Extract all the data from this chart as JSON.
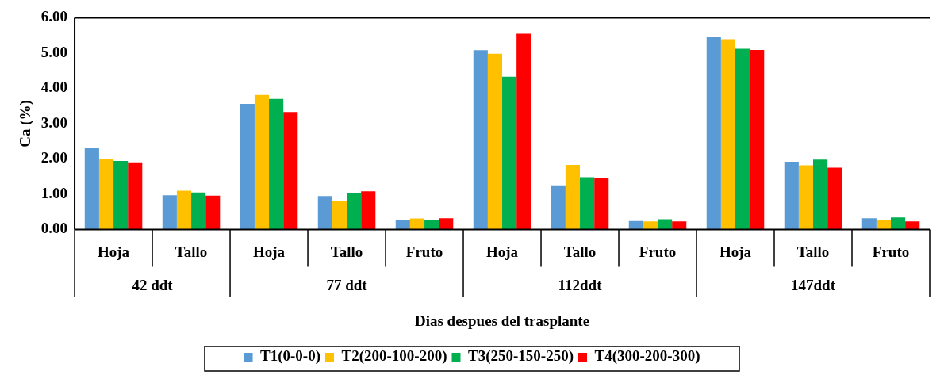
{
  "chart_data": {
    "type": "bar",
    "xlabel": "Dias despues del trasplante",
    "ylabel": "Ca (%)",
    "categories": [
      "Hoja",
      "Tallo",
      "Hoja",
      "Tallo",
      "Fruto",
      "Hoja",
      "Tallo",
      "Fruto",
      "Hoja",
      "Tallo",
      "Fruto"
    ],
    "annotations": [
      "42 ddt",
      "77 ddt",
      "112ddt",
      "147ddt"
    ],
    "ylim": [
      0,
      6
    ],
    "yticks": [
      {
        "value": 0,
        "label": "0.00"
      },
      {
        "value": 1,
        "label": "1.00"
      },
      {
        "value": 2,
        "label": "2.00"
      },
      {
        "value": 3,
        "label": "3.00"
      },
      {
        "value": 4,
        "label": "4.00"
      },
      {
        "value": 5,
        "label": "5.00"
      },
      {
        "value": 6,
        "label": "6.00"
      }
    ],
    "grid": false,
    "legend": "bottom",
    "series": [
      {
        "name": "T1(0-0-0)",
        "color": "#5b9bd5",
        "values": [
          2.3,
          0.97,
          3.56,
          0.95,
          0.28,
          5.08,
          1.25,
          0.24,
          5.45,
          1.92,
          0.32
        ]
      },
      {
        "name": "T2(200-100-200)",
        "color": "#ffc000",
        "values": [
          2.0,
          1.1,
          3.81,
          0.82,
          0.31,
          4.98,
          1.83,
          0.23,
          5.39,
          1.82,
          0.26
        ]
      },
      {
        "name": "T3(250-150-250)",
        "color": "#00b050",
        "values": [
          1.94,
          1.05,
          3.7,
          1.02,
          0.28,
          4.33,
          1.48,
          0.29,
          5.12,
          1.98,
          0.34
        ]
      },
      {
        "name": "T4(300-200-300)",
        "color": "#ff0000",
        "values": [
          1.9,
          0.96,
          3.33,
          1.08,
          0.32,
          5.55,
          1.46,
          0.23,
          5.09,
          1.75,
          0.23
        ]
      }
    ]
  }
}
